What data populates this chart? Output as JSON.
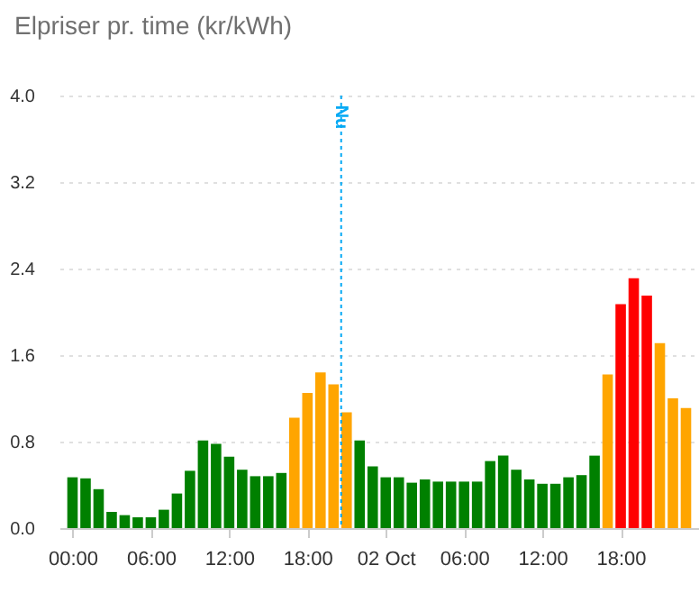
{
  "chart_data": {
    "type": "bar",
    "title": "Elpriser pr. time (kr/kWh)",
    "x": [
      "--10-01T00:00",
      "--10-01T01:00",
      "--10-01T02:00",
      "--10-01T03:00",
      "--10-01T04:00",
      "--10-01T05:00",
      "--10-01T06:00",
      "--10-01T07:00",
      "--10-01T08:00",
      "--10-01T09:00",
      "--10-01T10:00",
      "--10-01T11:00",
      "--10-01T12:00",
      "--10-01T13:00",
      "--10-01T14:00",
      "--10-01T15:00",
      "--10-01T16:00",
      "--10-01T17:00",
      "--10-01T18:00",
      "--10-01T19:00",
      "--10-01T20:00",
      "--10-01T21:00",
      "--10-01T22:00",
      "--10-01T23:00",
      "--10-02T00:00",
      "--10-02T01:00",
      "--10-02T02:00",
      "--10-02T03:00",
      "--10-02T04:00",
      "--10-02T05:00",
      "--10-02T06:00",
      "--10-02T07:00",
      "--10-02T08:00",
      "--10-02T09:00",
      "--10-02T10:00",
      "--10-02T11:00",
      "--10-02T12:00",
      "--10-02T13:00",
      "--10-02T14:00",
      "--10-02T15:00",
      "--10-02T16:00",
      "--10-02T17:00",
      "--10-02T18:00",
      "--10-02T19:00",
      "--10-02T20:00",
      "--10-02T21:00",
      "--10-02T22:00",
      "--10-02T23:00"
    ],
    "values": [
      0.47,
      0.46,
      0.36,
      0.15,
      0.12,
      0.1,
      0.1,
      0.17,
      0.32,
      0.53,
      0.81,
      0.78,
      0.66,
      0.54,
      0.48,
      0.48,
      0.51,
      1.02,
      1.25,
      1.44,
      1.33,
      1.07,
      0.81,
      0.57,
      0.47,
      0.47,
      0.42,
      0.45,
      0.43,
      0.43,
      0.43,
      0.43,
      0.62,
      0.67,
      0.54,
      0.45,
      0.41,
      0.41,
      0.47,
      0.49,
      0.67,
      1.42,
      2.07,
      2.31,
      2.15,
      1.71,
      1.2,
      1.11
    ],
    "colors": [
      "#008000",
      "#008000",
      "#008000",
      "#008000",
      "#008000",
      "#008000",
      "#008000",
      "#008000",
      "#008000",
      "#008000",
      "#008000",
      "#008000",
      "#008000",
      "#008000",
      "#008000",
      "#008000",
      "#008000",
      "#ffa500",
      "#ffa500",
      "#ffa500",
      "#ffa500",
      "#ffa500",
      "#008000",
      "#008000",
      "#008000",
      "#008000",
      "#008000",
      "#008000",
      "#008000",
      "#008000",
      "#008000",
      "#008000",
      "#008000",
      "#008000",
      "#008000",
      "#008000",
      "#008000",
      "#008000",
      "#008000",
      "#008000",
      "#008000",
      "#ffa500",
      "#ff0000",
      "#ff0000",
      "#ff0000",
      "#ffa500",
      "#ffa500",
      "#ffa500"
    ],
    "xlim": [
      "--09-30T23:00",
      "--10-03T00:00"
    ],
    "xticks": [
      {
        "value": "--10-01T00:00",
        "label": "00:00"
      },
      {
        "value": "--10-01T06:00",
        "label": "06:00"
      },
      {
        "value": "--10-01T12:00",
        "label": "12:00"
      },
      {
        "value": "--10-01T18:00",
        "label": "18:00"
      },
      {
        "value": "--10-02T00:00",
        "label": "02 Oct"
      },
      {
        "value": "--10-02T06:00",
        "label": "06:00"
      },
      {
        "value": "--10-02T12:00",
        "label": "12:00"
      },
      {
        "value": "--10-02T18:00",
        "label": "18:00"
      }
    ],
    "ylim": [
      0,
      4
    ],
    "yticks": [
      {
        "value": 0,
        "label": "0.0"
      },
      {
        "value": 0.8,
        "label": "0.8"
      },
      {
        "value": 1.6,
        "label": "1.6"
      },
      {
        "value": 2.4,
        "label": "2.4"
      },
      {
        "value": 3.2,
        "label": "3.2"
      },
      {
        "value": 4,
        "label": "4.0"
      }
    ],
    "grid": "y",
    "ref_lines": [
      {
        "axis": "x",
        "value": "--10-01T20:35",
        "label": "Nu",
        "color": "#03a9f4",
        "line_style": "dotted"
      }
    ]
  }
}
